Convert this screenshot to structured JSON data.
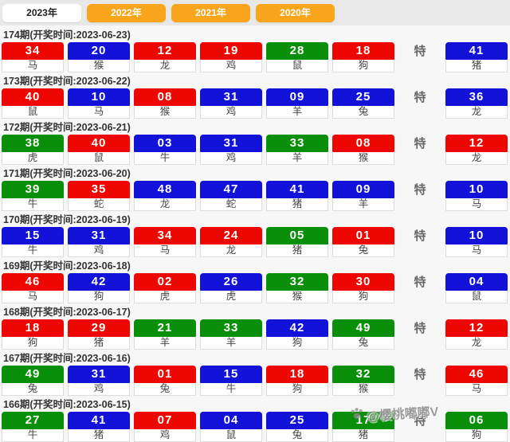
{
  "tabs": [
    {
      "label": "2023年",
      "active": true
    },
    {
      "label": "2022年",
      "active": false
    },
    {
      "label": "2021年",
      "active": false
    },
    {
      "label": "2020年",
      "active": false
    }
  ],
  "special_label": "特",
  "colors": {
    "red": "#ee0600",
    "blue": "#1212d9",
    "green": "#0a8f0a",
    "tab_orange": "#f9a51b"
  },
  "results": [
    {
      "header": "174期(开奖时间:2023-06-23)",
      "balls": [
        {
          "num": "34",
          "color": "red",
          "animal": "马"
        },
        {
          "num": "20",
          "color": "blue",
          "animal": "猴"
        },
        {
          "num": "12",
          "color": "red",
          "animal": "龙"
        },
        {
          "num": "19",
          "color": "red",
          "animal": "鸡"
        },
        {
          "num": "28",
          "color": "green",
          "animal": "鼠"
        },
        {
          "num": "18",
          "color": "red",
          "animal": "狗"
        }
      ],
      "special": {
        "num": "41",
        "color": "blue",
        "animal": "猪"
      }
    },
    {
      "header": "173期(开奖时间:2023-06-22)",
      "balls": [
        {
          "num": "40",
          "color": "red",
          "animal": "鼠"
        },
        {
          "num": "10",
          "color": "blue",
          "animal": "马"
        },
        {
          "num": "08",
          "color": "red",
          "animal": "猴"
        },
        {
          "num": "31",
          "color": "blue",
          "animal": "鸡"
        },
        {
          "num": "09",
          "color": "blue",
          "animal": "羊"
        },
        {
          "num": "25",
          "color": "blue",
          "animal": "兔"
        }
      ],
      "special": {
        "num": "36",
        "color": "blue",
        "animal": "龙"
      }
    },
    {
      "header": "172期(开奖时间:2023-06-21)",
      "balls": [
        {
          "num": "38",
          "color": "green",
          "animal": "虎"
        },
        {
          "num": "40",
          "color": "red",
          "animal": "鼠"
        },
        {
          "num": "03",
          "color": "blue",
          "animal": "牛"
        },
        {
          "num": "31",
          "color": "blue",
          "animal": "鸡"
        },
        {
          "num": "33",
          "color": "green",
          "animal": "羊"
        },
        {
          "num": "08",
          "color": "red",
          "animal": "猴"
        }
      ],
      "special": {
        "num": "12",
        "color": "red",
        "animal": "龙"
      }
    },
    {
      "header": "171期(开奖时间:2023-06-20)",
      "balls": [
        {
          "num": "39",
          "color": "green",
          "animal": "牛"
        },
        {
          "num": "35",
          "color": "red",
          "animal": "蛇"
        },
        {
          "num": "48",
          "color": "blue",
          "animal": "龙"
        },
        {
          "num": "47",
          "color": "blue",
          "animal": "蛇"
        },
        {
          "num": "41",
          "color": "blue",
          "animal": "猪"
        },
        {
          "num": "09",
          "color": "blue",
          "animal": "羊"
        }
      ],
      "special": {
        "num": "10",
        "color": "blue",
        "animal": "马"
      }
    },
    {
      "header": "170期(开奖时间:2023-06-19)",
      "balls": [
        {
          "num": "15",
          "color": "blue",
          "animal": "牛"
        },
        {
          "num": "31",
          "color": "blue",
          "animal": "鸡"
        },
        {
          "num": "34",
          "color": "red",
          "animal": "马"
        },
        {
          "num": "24",
          "color": "red",
          "animal": "龙"
        },
        {
          "num": "05",
          "color": "green",
          "animal": "猪"
        },
        {
          "num": "01",
          "color": "red",
          "animal": "兔"
        }
      ],
      "special": {
        "num": "10",
        "color": "blue",
        "animal": "马"
      }
    },
    {
      "header": "169期(开奖时间:2023-06-18)",
      "balls": [
        {
          "num": "46",
          "color": "red",
          "animal": "马"
        },
        {
          "num": "42",
          "color": "blue",
          "animal": "狗"
        },
        {
          "num": "02",
          "color": "red",
          "animal": "虎"
        },
        {
          "num": "26",
          "color": "blue",
          "animal": "虎"
        },
        {
          "num": "32",
          "color": "green",
          "animal": "猴"
        },
        {
          "num": "30",
          "color": "red",
          "animal": "狗"
        }
      ],
      "special": {
        "num": "04",
        "color": "blue",
        "animal": "鼠"
      }
    },
    {
      "header": "168期(开奖时间:2023-06-17)",
      "balls": [
        {
          "num": "18",
          "color": "red",
          "animal": "狗"
        },
        {
          "num": "29",
          "color": "red",
          "animal": "猪"
        },
        {
          "num": "21",
          "color": "green",
          "animal": "羊"
        },
        {
          "num": "33",
          "color": "green",
          "animal": "羊"
        },
        {
          "num": "42",
          "color": "blue",
          "animal": "狗"
        },
        {
          "num": "49",
          "color": "green",
          "animal": "兔"
        }
      ],
      "special": {
        "num": "12",
        "color": "red",
        "animal": "龙"
      }
    },
    {
      "header": "167期(开奖时间:2023-06-16)",
      "balls": [
        {
          "num": "49",
          "color": "green",
          "animal": "兔"
        },
        {
          "num": "31",
          "color": "blue",
          "animal": "鸡"
        },
        {
          "num": "01",
          "color": "red",
          "animal": "兔"
        },
        {
          "num": "15",
          "color": "blue",
          "animal": "牛"
        },
        {
          "num": "18",
          "color": "red",
          "animal": "狗"
        },
        {
          "num": "32",
          "color": "green",
          "animal": "猴"
        }
      ],
      "special": {
        "num": "46",
        "color": "red",
        "animal": "马"
      }
    },
    {
      "header": "166期(开奖时间:2023-06-15)",
      "balls": [
        {
          "num": "27",
          "color": "green",
          "animal": "牛"
        },
        {
          "num": "41",
          "color": "blue",
          "animal": "猪"
        },
        {
          "num": "07",
          "color": "red",
          "animal": "鸡"
        },
        {
          "num": "04",
          "color": "blue",
          "animal": "鼠"
        },
        {
          "num": "25",
          "color": "blue",
          "animal": "兔"
        },
        {
          "num": "17",
          "color": "green",
          "animal": "猪"
        }
      ],
      "special": {
        "num": "06",
        "color": "green",
        "animal": "狗"
      }
    }
  ],
  "watermark": {
    "icon": "paw-icon",
    "text": "@樱桃嘟嘟V"
  }
}
